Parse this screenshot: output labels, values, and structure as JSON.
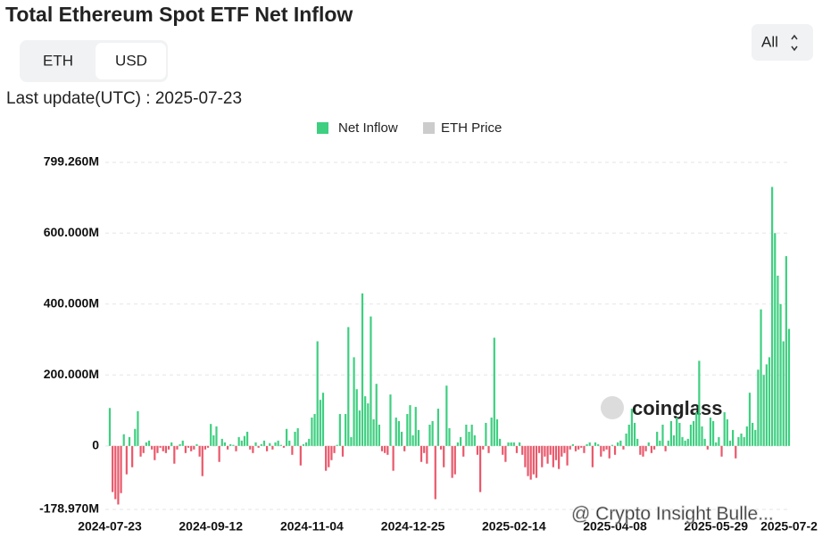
{
  "header": {
    "title": "Total Ethereum Spot ETF Net Inflow",
    "toggle": [
      "ETH",
      "USD"
    ],
    "selected": "USD",
    "last_update": "Last update(UTC) : 2025-07-23",
    "range_select": "All",
    "watermark": "coinglass",
    "credit": "@ Crypto Insight Bulle..."
  },
  "chart_data": {
    "type": "bar",
    "grid": true,
    "ylim": [
      -178.97,
      799.26
    ],
    "yticks": [
      {
        "value": -178.97,
        "label": "-178.970M"
      },
      0,
      {
        "value": 200,
        "label": "200.000M"
      },
      {
        "value": 400,
        "label": "400.000M"
      },
      {
        "value": 600,
        "label": "600.000M"
      },
      {
        "value": 799.26,
        "label": "799.260M"
      }
    ],
    "categories": [
      "2024-07-23",
      null,
      null,
      null,
      null,
      null,
      null,
      null,
      null,
      null,
      null,
      null,
      null,
      null,
      null,
      null,
      null,
      null,
      null,
      null,
      null,
      null,
      null,
      null,
      null,
      null,
      null,
      null,
      null,
      null,
      null,
      null,
      null,
      null,
      null,
      null,
      "2024-09-12",
      null,
      null,
      null,
      null,
      null,
      null,
      null,
      null,
      null,
      null,
      null,
      null,
      null,
      null,
      null,
      null,
      null,
      null,
      null,
      null,
      null,
      null,
      null,
      null,
      null,
      null,
      null,
      null,
      null,
      null,
      null,
      null,
      null,
      null,
      null,
      "2024-11-04",
      null,
      null,
      null,
      null,
      null,
      null,
      null,
      null,
      null,
      null,
      null,
      null,
      null,
      null,
      null,
      null,
      null,
      null,
      null,
      null,
      null,
      null,
      null,
      null,
      null,
      null,
      null,
      null,
      null,
      null,
      null,
      null,
      null,
      null,
      null,
      "2024-12-25",
      null,
      null,
      null,
      null,
      null,
      null,
      null,
      null,
      null,
      null,
      null,
      null,
      null,
      null,
      null,
      null,
      null,
      null,
      null,
      null,
      null,
      null,
      null,
      null,
      null,
      null,
      null,
      null,
      null,
      null,
      null,
      null,
      null,
      null,
      null,
      "2025-02-14",
      null,
      null,
      null,
      null,
      null,
      null,
      null,
      null,
      null,
      null,
      null,
      null,
      null,
      null,
      null,
      null,
      null,
      null,
      null,
      null,
      null,
      null,
      null,
      null,
      null,
      null,
      null,
      null,
      null,
      null,
      null,
      null,
      null,
      null,
      null,
      "2025-04-08",
      null,
      null,
      null,
      null,
      null,
      null,
      null,
      null,
      null,
      null,
      null,
      null,
      null,
      null,
      null,
      null,
      null,
      null,
      null,
      null,
      null,
      null,
      null,
      null,
      null,
      null,
      null,
      null,
      null,
      null,
      null,
      null,
      null,
      null,
      null,
      "2025-05-29",
      null,
      null,
      null,
      null,
      null,
      null,
      null,
      null,
      null,
      null,
      null,
      null,
      null,
      null,
      null,
      null,
      null,
      null,
      null,
      null,
      null,
      null,
      null,
      null,
      null,
      "2025-07-2"
    ],
    "series": [
      {
        "name": "Net Inflow",
        "color": "#3ecf80",
        "negative_color": "#e9586b",
        "values": [
          107,
          -130,
          -150,
          -165,
          -133,
          33,
          -80,
          25,
          -60,
          48,
          98,
          -30,
          -20,
          10,
          15,
          -10,
          -40,
          -20,
          -5,
          -15,
          -20,
          -10,
          10,
          -50,
          -10,
          5,
          15,
          -20,
          -5,
          -15,
          -10,
          5,
          -30,
          -85,
          -10,
          -5,
          62,
          30,
          55,
          -45,
          20,
          10,
          -10,
          5,
          3,
          -15,
          25,
          15,
          28,
          40,
          -10,
          -20,
          10,
          -5,
          5,
          15,
          -15,
          8,
          -10,
          10,
          15,
          3,
          -5,
          48,
          15,
          -25,
          40,
          50,
          -55,
          5,
          10,
          20,
          80,
          90,
          295,
          130,
          150,
          -70,
          -60,
          -40,
          -20,
          3,
          90,
          -30,
          90,
          335,
          25,
          250,
          160,
          100,
          430,
          140,
          120,
          365,
          75,
          175,
          60,
          -15,
          -20,
          -25,
          145,
          -70,
          80,
          70,
          40,
          -15,
          90,
          115,
          30,
          110,
          45,
          -45,
          -20,
          -50,
          60,
          70,
          -150,
          105,
          -10,
          -60,
          170,
          50,
          -90,
          -80,
          10,
          25,
          -30,
          60,
          40,
          60,
          30,
          -25,
          -130,
          -10,
          65,
          -20,
          80,
          305,
          75,
          20,
          -25,
          -45,
          10,
          10,
          10,
          -20,
          10,
          -25,
          -60,
          -85,
          -95,
          -80,
          -90,
          -20,
          -60,
          -30,
          -50,
          -25,
          -60,
          -40,
          -65,
          -30,
          -20,
          -55,
          -10,
          5,
          -15,
          -10,
          -5,
          -20,
          5,
          10,
          -60,
          10,
          5,
          -30,
          -15,
          -10,
          -35,
          3,
          -25,
          10,
          15,
          -10,
          35,
          60,
          105,
          65,
          20,
          -25,
          -30,
          -15,
          10,
          -20,
          -10,
          40,
          15,
          60,
          -15,
          15,
          70,
          30,
          80,
          65,
          25,
          15,
          20,
          60,
          70,
          95,
          240,
          55,
          20,
          -10,
          80,
          70,
          10,
          25,
          -30,
          95,
          75,
          15,
          45,
          -35,
          25,
          35,
          25,
          55,
          150,
          65,
          45,
          215,
          385,
          200,
          230,
          250,
          730,
          600,
          480,
          400,
          295,
          535,
          330
        ]
      }
    ],
    "hidden_series": [
      {
        "name": "ETH Price",
        "color": "#cccccc"
      }
    ]
  }
}
